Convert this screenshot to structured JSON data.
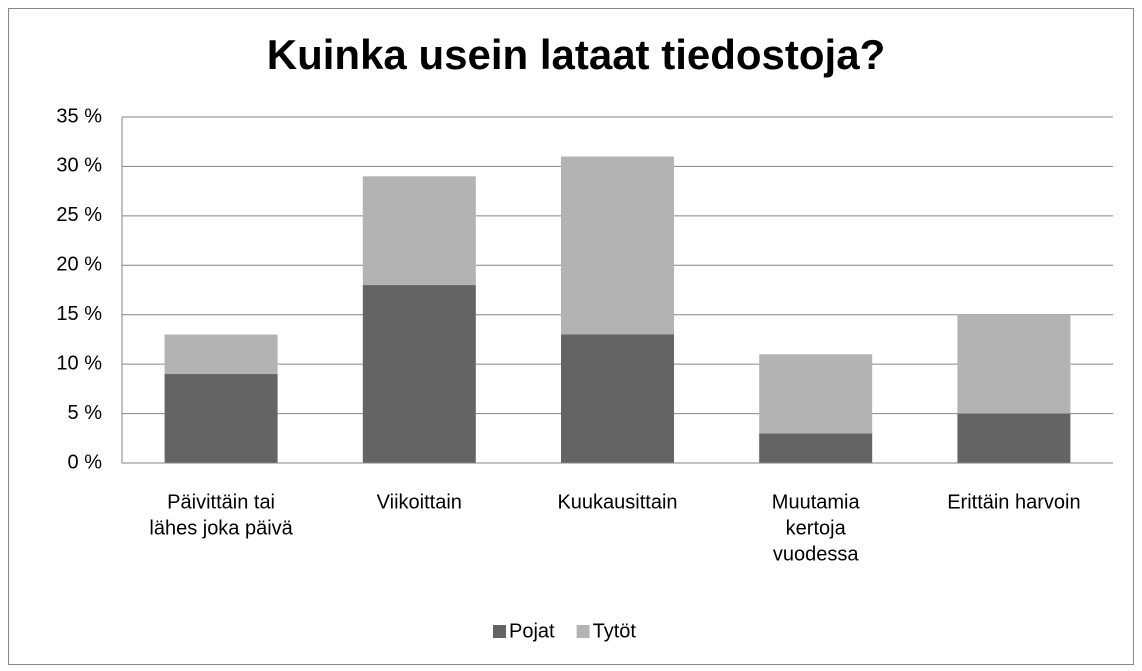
{
  "chart_data": {
    "type": "stacked_bar",
    "title": "Kuinka usein lataat tiedostoja?",
    "categories": [
      [
        "Päivittäin tai",
        "lähes joka päivä"
      ],
      [
        "Viikoittain"
      ],
      [
        "Kuukausittain"
      ],
      [
        "Muutamia",
        "kertoja",
        "vuodessa"
      ],
      [
        "Erittäin harvoin"
      ]
    ],
    "series": [
      {
        "name": "Pojat",
        "color": "#646464",
        "values": [
          9,
          18,
          13,
          3,
          5
        ]
      },
      {
        "name": "Tytöt",
        "color": "#b3b3b3",
        "values": [
          4,
          11,
          18,
          8,
          10
        ]
      }
    ],
    "ylim": [
      0,
      35
    ],
    "yticks": [
      {
        "value": 0,
        "label": "0 %"
      },
      {
        "value": 5,
        "label": "5 %"
      },
      {
        "value": 10,
        "label": "10 %"
      },
      {
        "value": 15,
        "label": "15 %"
      },
      {
        "value": 20,
        "label": "20 %"
      },
      {
        "value": 25,
        "label": "25 %"
      },
      {
        "value": 30,
        "label": "30 %"
      },
      {
        "value": 35,
        "label": "35 %"
      }
    ],
    "grid": true,
    "legend": "bottom"
  }
}
